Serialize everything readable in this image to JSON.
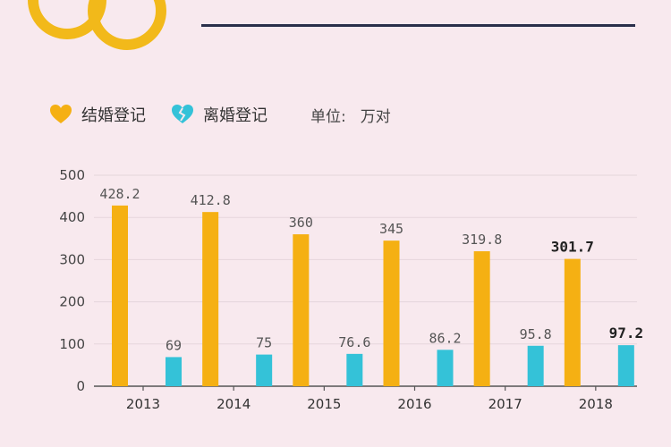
{
  "legend": {
    "marriage": "结婚登记",
    "divorce": "离婚登记",
    "unit_label": "单位:",
    "unit_value": "万对"
  },
  "colors": {
    "marriage": "#f5b013",
    "divorce": "#34c2d8",
    "background": "#f8e9ee",
    "title": "#2a2f4a"
  },
  "icons": {
    "rings": "wedding-rings-icon",
    "marriage": "heart-icon",
    "divorce": "broken-heart-icon"
  },
  "chart_data": {
    "type": "bar",
    "categories": [
      "2013",
      "2014",
      "2015",
      "2016",
      "2017",
      "2018"
    ],
    "series": [
      {
        "name": "结婚登记",
        "values": [
          428.2,
          412.8,
          360,
          345,
          319.8,
          301.7
        ],
        "labels": [
          "428.2",
          "412.8",
          "360",
          "345",
          "319.8",
          "301.7"
        ]
      },
      {
        "name": "离婚登记",
        "values": [
          69,
          75,
          76.6,
          86.2,
          95.8,
          97.2
        ],
        "labels": [
          "69",
          "75",
          "76.6",
          "86.2",
          "95.8",
          "97.2"
        ]
      }
    ],
    "yticks": [
      "0",
      "100",
      "200",
      "300",
      "400",
      "500"
    ],
    "ylim": [
      0,
      500
    ],
    "ylabel": "单位: 万对",
    "grid": true,
    "legend_position": "top-left",
    "bold_category": "2018"
  }
}
